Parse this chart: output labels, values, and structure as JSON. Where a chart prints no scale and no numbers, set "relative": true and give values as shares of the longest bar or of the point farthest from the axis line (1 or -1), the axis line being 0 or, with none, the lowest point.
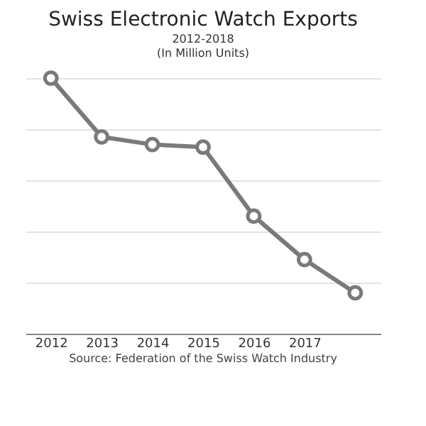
{
  "chart_data": {
    "type": "line",
    "title": "Swiss Electronic Watch Exports",
    "subtitle": [
      "2012-2018",
      "(In Million Units)"
    ],
    "categories": [
      "2012",
      "2013",
      "2014",
      "2015",
      "2016",
      "2017",
      null
    ],
    "series": [
      {
        "color": "#7a7a7a",
        "values": [
          1,
          0.77,
          0.74,
          0.73,
          0.46,
          0.29,
          0.16
        ]
      }
    ],
    "relative": true,
    "grid": "y",
    "marker": "circle",
    "line_style": "solid",
    "annotations": [
      "Source: Federation of the Swiss Watch Industry"
    ]
  }
}
